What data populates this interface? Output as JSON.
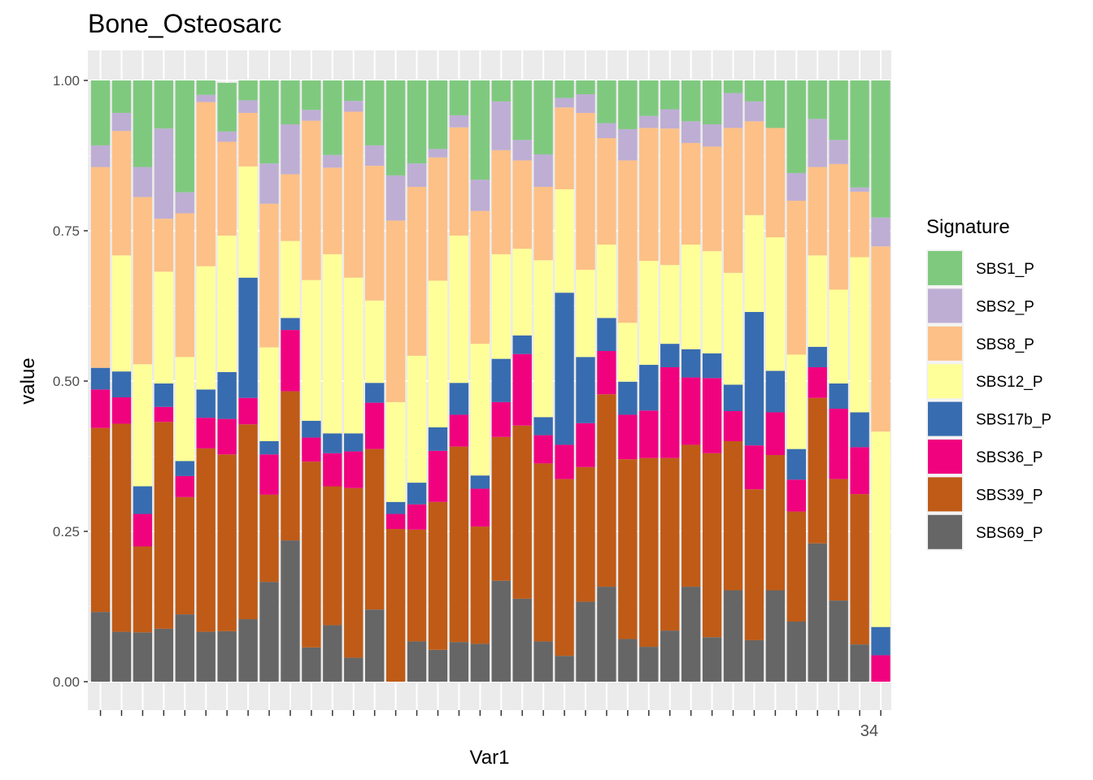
{
  "chart_data": {
    "type": "bar",
    "stacked": true,
    "title": "Bone_Osteosarc",
    "xlabel": "Var1",
    "ylabel": "value",
    "ylim": [
      0,
      1
    ],
    "yticks": [
      "0.00",
      "0.25",
      "0.50",
      "0.75",
      "1.00"
    ],
    "grid": true,
    "legend": {
      "title": "Signature",
      "position": "right"
    },
    "x_tick_labels_visible_text": "34",
    "num_bars": 38,
    "signatures": [
      "SBS1_P",
      "SBS2_P",
      "SBS8_P",
      "SBS12_P",
      "SBS17b_P",
      "SBS36_P",
      "SBS39_P",
      "SBS69_P"
    ],
    "colors": [
      "#7FC97F",
      "#BEAED4",
      "#FDC086",
      "#FFFF99",
      "#386CB0",
      "#F0027F",
      "#BF5B17",
      "#666666"
    ],
    "stack_order_bottom_to_top": [
      "SBS69_P",
      "SBS39_P",
      "SBS36_P",
      "SBS17b_P",
      "SBS12_P",
      "SBS8_P",
      "SBS2_P",
      "SBS1_P"
    ],
    "series": [
      {
        "name": "SBS69_P",
        "values": [
          0.116,
          0.083,
          0.082,
          0.088,
          0.112,
          0.083,
          0.084,
          0.104,
          0.166,
          0.235,
          0.057,
          0.094,
          0.04,
          0.12,
          0.0,
          0.067,
          0.053,
          0.066,
          0.063,
          0.168,
          0.138,
          0.067,
          0.043,
          0.133,
          0.158,
          0.071,
          0.058,
          0.085,
          0.158,
          0.074,
          0.152,
          0.069,
          0.152,
          0.1,
          0.23,
          0.135,
          0.062,
          0.0
        ]
      },
      {
        "name": "SBS39_P",
        "values": [
          0.306,
          0.346,
          0.143,
          0.344,
          0.195,
          0.305,
          0.294,
          0.324,
          0.145,
          0.248,
          0.309,
          0.231,
          0.282,
          0.267,
          0.254,
          0.186,
          0.246,
          0.325,
          0.195,
          0.239,
          0.288,
          0.296,
          0.294,
          0.224,
          0.32,
          0.299,
          0.314,
          0.287,
          0.236,
          0.306,
          0.248,
          0.251,
          0.225,
          0.183,
          0.242,
          0.202,
          0.25,
          0.0
        ]
      },
      {
        "name": "SBS36_P",
        "values": [
          0.064,
          0.044,
          0.054,
          0.025,
          0.035,
          0.051,
          0.059,
          0.044,
          0.067,
          0.102,
          0.04,
          0.055,
          0.061,
          0.077,
          0.025,
          0.042,
          0.085,
          0.053,
          0.063,
          0.058,
          0.119,
          0.047,
          0.057,
          0.073,
          0.072,
          0.074,
          0.079,
          0.151,
          0.112,
          0.125,
          0.05,
          0.073,
          0.071,
          0.053,
          0.051,
          0.117,
          0.078,
          0.044
        ]
      },
      {
        "name": "SBS17b_P",
        "values": [
          0.036,
          0.043,
          0.046,
          0.039,
          0.025,
          0.047,
          0.078,
          0.2,
          0.022,
          0.02,
          0.028,
          0.033,
          0.03,
          0.033,
          0.02,
          0.036,
          0.039,
          0.053,
          0.022,
          0.072,
          0.031,
          0.03,
          0.253,
          0.11,
          0.055,
          0.055,
          0.076,
          0.039,
          0.047,
          0.041,
          0.044,
          0.222,
          0.069,
          0.051,
          0.034,
          0.042,
          0.058,
          0.047
        ]
      },
      {
        "name": "SBS12_P",
        "values": [
          0.0,
          0.193,
          0.203,
          0.186,
          0.173,
          0.205,
          0.227,
          0.185,
          0.156,
          0.128,
          0.234,
          0.298,
          0.259,
          0.137,
          0.166,
          0.211,
          0.244,
          0.245,
          0.219,
          0.174,
          0.144,
          0.261,
          0.172,
          0.145,
          0.122,
          0.098,
          0.173,
          0.131,
          0.174,
          0.17,
          0.186,
          0.161,
          0.222,
          0.157,
          0.152,
          0.156,
          0.258,
          0.325
        ]
      },
      {
        "name": "SBS8_P",
        "values": [
          0.334,
          0.207,
          0.278,
          0.088,
          0.239,
          0.273,
          0.156,
          0.089,
          0.239,
          0.111,
          0.265,
          0.144,
          0.276,
          0.224,
          0.302,
          0.281,
          0.205,
          0.18,
          0.221,
          0.173,
          0.147,
          0.122,
          0.136,
          0.261,
          0.177,
          0.27,
          0.221,
          0.227,
          0.169,
          0.174,
          0.241,
          0.156,
          0.182,
          0.256,
          0.147,
          0.209,
          0.109,
          0.308
        ]
      },
      {
        "name": "SBS2_P",
        "values": [
          0.036,
          0.03,
          0.05,
          0.15,
          0.035,
          0.012,
          0.017,
          0.021,
          0.067,
          0.083,
          0.018,
          0.021,
          0.018,
          0.034,
          0.075,
          0.039,
          0.014,
          0.02,
          0.052,
          0.081,
          0.034,
          0.054,
          0.016,
          0.031,
          0.025,
          0.052,
          0.02,
          0.032,
          0.036,
          0.037,
          0.058,
          0.033,
          0.0,
          0.046,
          0.08,
          0.04,
          0.007,
          0.048
        ]
      },
      {
        "name": "SBS1_P",
        "values": [
          0.108,
          0.054,
          0.144,
          0.08,
          0.186,
          0.024,
          0.081,
          0.033,
          0.138,
          0.073,
          0.049,
          0.124,
          0.034,
          0.108,
          0.158,
          0.138,
          0.114,
          0.058,
          0.165,
          0.035,
          0.099,
          0.123,
          0.029,
          0.023,
          0.071,
          0.081,
          0.059,
          0.048,
          0.068,
          0.073,
          0.021,
          0.035,
          0.079,
          0.154,
          0.064,
          0.099,
          0.178,
          0.228
        ]
      }
    ]
  }
}
